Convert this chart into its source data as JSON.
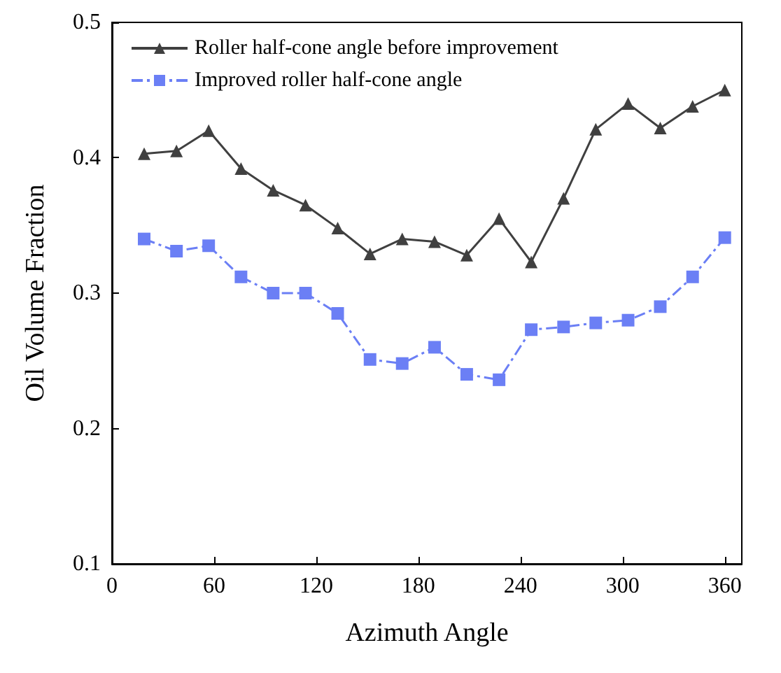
{
  "chart_data": {
    "type": "line",
    "xlabel": "Azimuth Angle",
    "ylabel": "Oil Volume Fraction",
    "x": [
      18.9,
      37.9,
      56.8,
      75.8,
      94.7,
      113.7,
      132.6,
      151.6,
      170.5,
      189.5,
      208.4,
      227.4,
      246.3,
      265.3,
      284.2,
      303.2,
      322.1,
      341.1,
      360
    ],
    "series": [
      {
        "name": "Roller half-cone angle before improvement",
        "color": "#404040",
        "marker": "triangle",
        "line_style": "solid",
        "values": [
          0.403,
          0.405,
          0.42,
          0.392,
          0.376,
          0.365,
          0.348,
          0.329,
          0.34,
          0.338,
          0.328,
          0.355,
          0.323,
          0.37,
          0.421,
          0.44,
          0.422,
          0.438,
          0.45
        ]
      },
      {
        "name": "Improved roller half-cone angle",
        "color": "#6b7ff5",
        "marker": "square",
        "line_style": "dashdot",
        "values": [
          0.34,
          0.331,
          0.335,
          0.312,
          0.3,
          0.3,
          0.285,
          0.251,
          0.248,
          0.26,
          0.24,
          0.236,
          0.273,
          0.275,
          0.278,
          0.28,
          0.29,
          0.312,
          0.341
        ]
      }
    ],
    "xlim": [
      0,
      370
    ],
    "xticks": [
      0,
      60,
      120,
      180,
      240,
      300,
      360
    ],
    "ylim": [
      0.1,
      0.5
    ],
    "yticks": [
      0.1,
      0.2,
      0.3,
      0.4,
      0.5
    ],
    "grid": false,
    "legend": "top left"
  }
}
